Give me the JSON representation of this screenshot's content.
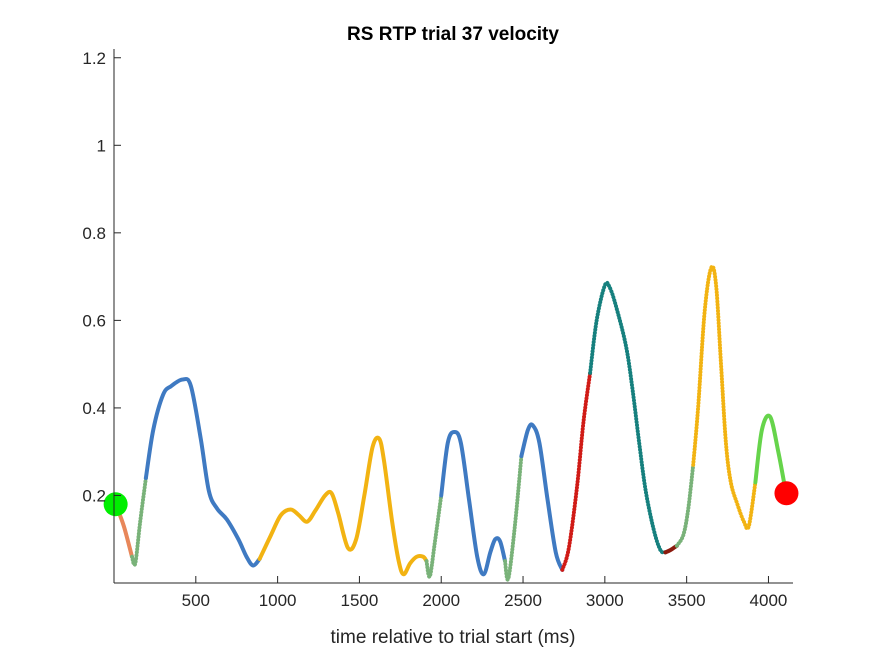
{
  "chart_data": {
    "type": "line",
    "title": "RS  RTP trial 37 velocity",
    "xlabel": "time relative to trial start (ms)",
    "ylabel": "",
    "xlim": [
      0,
      4150
    ],
    "ylim": [
      0,
      1.22
    ],
    "xticks": [
      500,
      1000,
      1500,
      2000,
      2500,
      3000,
      3500,
      4000
    ],
    "yticks": [
      0.2,
      0.4,
      0.6,
      0.8,
      1,
      1.2
    ],
    "grid": false,
    "series": [
      {
        "color": "#e8875a",
        "style": "solid",
        "points": [
          [
            10,
            0.18
          ],
          [
            60,
            0.13
          ],
          [
            110,
            0.06
          ]
        ]
      },
      {
        "color": "#79b279",
        "style": "dotted",
        "points": [
          [
            110,
            0.06
          ],
          [
            130,
            0.045
          ],
          [
            160,
            0.14
          ],
          [
            195,
            0.24
          ]
        ]
      },
      {
        "color": "#3f7ac2",
        "style": "solid",
        "points": [
          [
            195,
            0.24
          ],
          [
            240,
            0.35
          ],
          [
            300,
            0.43
          ],
          [
            350,
            0.45
          ],
          [
            420,
            0.465
          ],
          [
            470,
            0.45
          ],
          [
            530,
            0.33
          ],
          [
            580,
            0.21
          ],
          [
            630,
            0.17
          ],
          [
            690,
            0.145
          ],
          [
            760,
            0.1
          ],
          [
            810,
            0.06
          ],
          [
            850,
            0.04
          ],
          [
            890,
            0.055
          ]
        ]
      },
      {
        "color": "#f2b312",
        "style": "solid",
        "points": [
          [
            890,
            0.055
          ],
          [
            960,
            0.11
          ],
          [
            1020,
            0.155
          ],
          [
            1080,
            0.168
          ],
          [
            1130,
            0.155
          ],
          [
            1180,
            0.14
          ],
          [
            1230,
            0.165
          ],
          [
            1290,
            0.2
          ],
          [
            1330,
            0.205
          ],
          [
            1370,
            0.16
          ],
          [
            1430,
            0.08
          ],
          [
            1480,
            0.1
          ],
          [
            1530,
            0.2
          ],
          [
            1580,
            0.31
          ],
          [
            1620,
            0.33
          ],
          [
            1650,
            0.28
          ],
          [
            1700,
            0.14
          ],
          [
            1740,
            0.05
          ],
          [
            1770,
            0.02
          ],
          [
            1810,
            0.045
          ],
          [
            1850,
            0.06
          ],
          [
            1890,
            0.06
          ],
          [
            1910,
            0.05
          ]
        ]
      },
      {
        "color": "#79b279",
        "style": "dotted",
        "points": [
          [
            1910,
            0.05
          ],
          [
            1930,
            0.015
          ],
          [
            1960,
            0.09
          ],
          [
            2000,
            0.2
          ]
        ]
      },
      {
        "color": "#3f7ac2",
        "style": "solid",
        "points": [
          [
            2000,
            0.2
          ],
          [
            2040,
            0.32
          ],
          [
            2080,
            0.345
          ],
          [
            2120,
            0.32
          ],
          [
            2170,
            0.19
          ],
          [
            2220,
            0.06
          ],
          [
            2260,
            0.02
          ],
          [
            2300,
            0.07
          ],
          [
            2330,
            0.1
          ],
          [
            2360,
            0.095
          ],
          [
            2390,
            0.05
          ]
        ]
      },
      {
        "color": "#79b279",
        "style": "dotted",
        "points": [
          [
            2390,
            0.05
          ],
          [
            2410,
            0.01
          ],
          [
            2450,
            0.13
          ],
          [
            2490,
            0.29
          ]
        ]
      },
      {
        "color": "#3f7ac2",
        "style": "solid",
        "points": [
          [
            2490,
            0.29
          ],
          [
            2530,
            0.35
          ],
          [
            2560,
            0.36
          ],
          [
            2600,
            0.32
          ],
          [
            2650,
            0.19
          ],
          [
            2700,
            0.07
          ],
          [
            2740,
            0.03
          ]
        ]
      },
      {
        "color": "#d01b16",
        "style": "dotted",
        "points": [
          [
            2740,
            0.03
          ],
          [
            2780,
            0.08
          ],
          [
            2830,
            0.22
          ],
          [
            2870,
            0.37
          ],
          [
            2910,
            0.48
          ]
        ]
      },
      {
        "color": "#16807e",
        "style": "dotted",
        "points": [
          [
            2910,
            0.48
          ],
          [
            2950,
            0.6
          ],
          [
            3000,
            0.68
          ],
          [
            3030,
            0.675
          ],
          [
            3070,
            0.63
          ],
          [
            3130,
            0.54
          ],
          [
            3170,
            0.44
          ],
          [
            3210,
            0.32
          ],
          [
            3250,
            0.21
          ],
          [
            3300,
            0.12
          ],
          [
            3340,
            0.075
          ],
          [
            3370,
            0.07
          ]
        ]
      },
      {
        "color": "#8b1a0e",
        "style": "solid",
        "points": [
          [
            3370,
            0.07
          ],
          [
            3400,
            0.075
          ],
          [
            3440,
            0.085
          ]
        ]
      },
      {
        "color": "#79b279",
        "style": "dotted",
        "points": [
          [
            3440,
            0.085
          ],
          [
            3480,
            0.11
          ],
          [
            3510,
            0.17
          ],
          [
            3540,
            0.27
          ]
        ]
      },
      {
        "color": "#f2b312",
        "style": "dotted",
        "points": [
          [
            3540,
            0.27
          ],
          [
            3570,
            0.4
          ],
          [
            3610,
            0.62
          ],
          [
            3650,
            0.72
          ],
          [
            3680,
            0.68
          ],
          [
            3710,
            0.5
          ],
          [
            3740,
            0.32
          ],
          [
            3770,
            0.23
          ],
          [
            3810,
            0.18
          ],
          [
            3850,
            0.14
          ],
          [
            3880,
            0.13
          ],
          [
            3920,
            0.23
          ]
        ]
      },
      {
        "color": "#66d44b",
        "style": "solid",
        "points": [
          [
            3920,
            0.23
          ],
          [
            3960,
            0.35
          ],
          [
            4010,
            0.38
          ],
          [
            4060,
            0.3
          ],
          [
            4100,
            0.22
          ]
        ]
      }
    ],
    "markers": [
      {
        "x": 10,
        "y": 0.18,
        "color": "#00ee00"
      },
      {
        "x": 4110,
        "y": 0.205,
        "color": "#ff0000"
      }
    ]
  }
}
